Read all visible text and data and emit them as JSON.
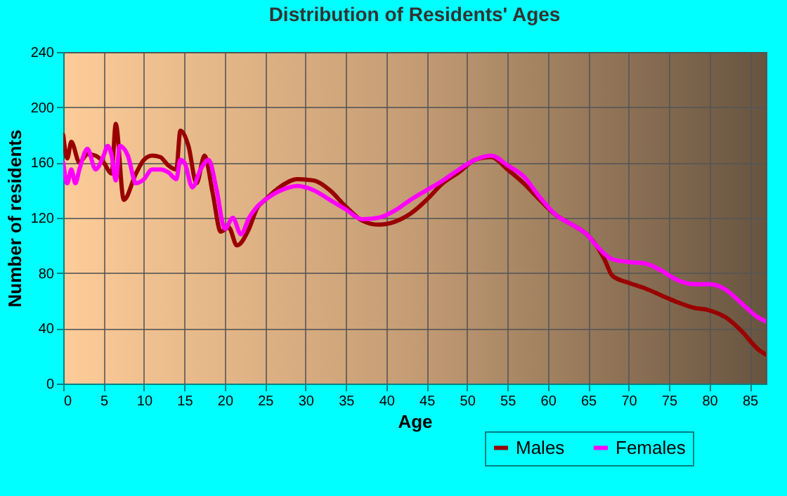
{
  "chart_data": {
    "type": "line",
    "title": "Distribution of Residents' Ages",
    "xlabel": "Age",
    "ylabel": "Number of residents",
    "xlim": [
      0,
      87
    ],
    "ylim": [
      0,
      240
    ],
    "xticks": [
      0,
      5,
      10,
      15,
      20,
      25,
      30,
      35,
      40,
      45,
      50,
      55,
      60,
      65,
      70,
      75,
      80,
      85
    ],
    "yticks": [
      0,
      40,
      80,
      120,
      160,
      200,
      240
    ],
    "grid": true,
    "legend": "bottom",
    "line_style": "solid",
    "series": [
      {
        "name": "Males",
        "color": "#990000",
        "x": [
          0,
          0.5,
          1,
          2,
          3,
          4,
          5,
          6,
          6.5,
          7.5,
          9,
          10,
          11,
          12,
          13,
          14,
          14.5,
          15.5,
          16.5,
          17.5,
          18.5,
          19.5,
          20.5,
          21.5,
          23,
          24,
          25,
          27,
          29,
          31,
          33,
          35,
          37,
          39,
          41,
          43,
          45,
          47,
          49,
          51,
          53,
          55,
          57,
          59,
          61,
          63,
          65,
          66,
          67,
          68,
          70,
          72,
          74,
          76,
          78,
          80,
          82,
          84,
          86,
          87
        ],
        "values": [
          180,
          163,
          175,
          160,
          166,
          165,
          160,
          152,
          188,
          133,
          152,
          162,
          165,
          164,
          158,
          155,
          183,
          172,
          145,
          165,
          138,
          110,
          113,
          100,
          112,
          127,
          133,
          143,
          148,
          147,
          140,
          128,
          118,
          115,
          117,
          123,
          133,
          145,
          153,
          162,
          164,
          155,
          145,
          133,
          122,
          115,
          107,
          100,
          90,
          78,
          73,
          69,
          64,
          59,
          55,
          53,
          48,
          38,
          25,
          21
        ]
      },
      {
        "name": "Females",
        "color": "#ff00ff",
        "x": [
          0,
          0.5,
          1,
          1.5,
          2,
          3,
          4,
          5,
          5.5,
          6,
          6.5,
          7,
          8,
          9,
          10,
          11,
          12,
          13,
          14,
          14.5,
          15,
          16,
          17,
          18,
          19,
          20,
          21,
          22,
          23,
          24,
          25,
          27,
          29,
          31,
          33,
          35,
          37,
          39,
          41,
          43,
          45,
          47,
          49,
          51,
          53,
          55,
          57,
          59,
          61,
          63,
          65,
          66,
          68,
          70,
          72,
          74,
          76,
          78,
          80,
          82,
          84,
          86,
          87
        ],
        "values": [
          160,
          145,
          155,
          145,
          155,
          170,
          155,
          165,
          172,
          165,
          147,
          172,
          165,
          145,
          148,
          155,
          155,
          153,
          148,
          162,
          160,
          142,
          155,
          162,
          140,
          112,
          120,
          108,
          120,
          128,
          133,
          140,
          143,
          140,
          133,
          126,
          119,
          120,
          125,
          133,
          140,
          147,
          155,
          162,
          165,
          158,
          150,
          135,
          122,
          115,
          107,
          100,
          90,
          88,
          87,
          82,
          75,
          72,
          72,
          68,
          58,
          48,
          45
        ]
      }
    ]
  }
}
